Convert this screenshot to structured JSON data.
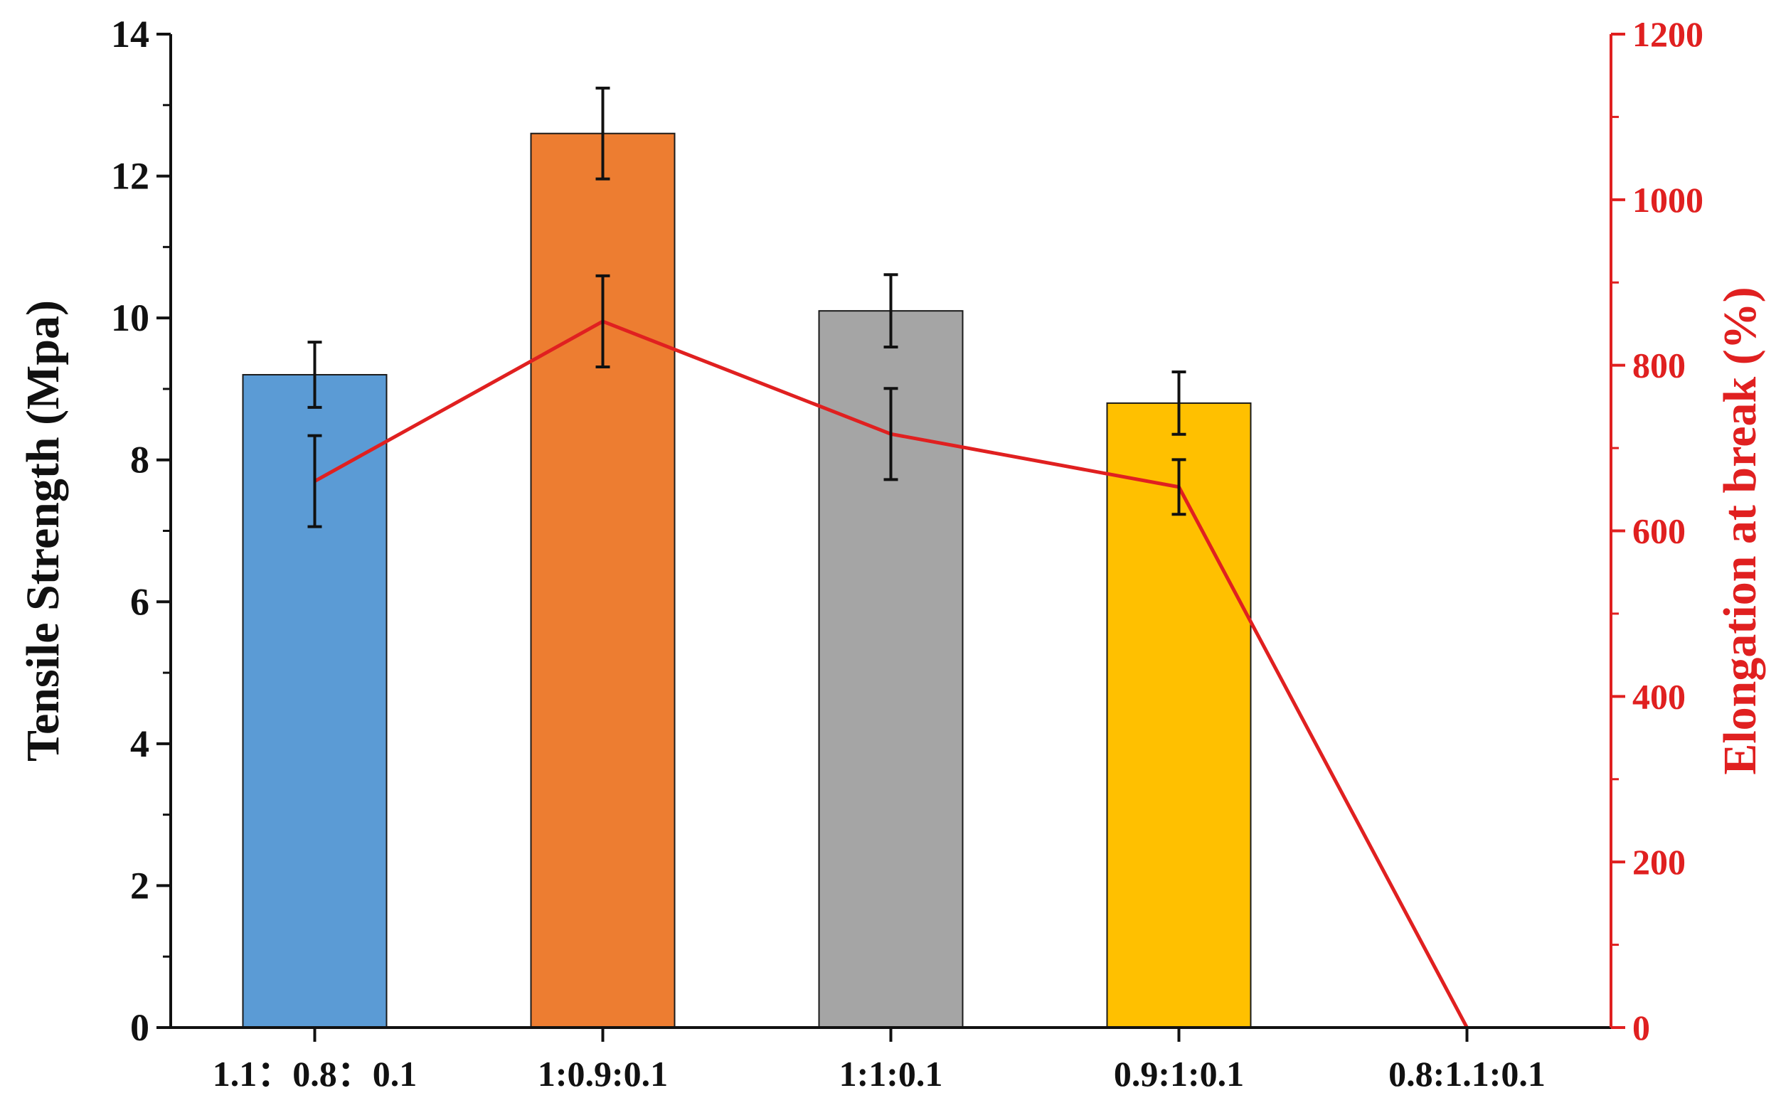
{
  "chart_data": {
    "type": "bar",
    "categories": [
      "1.1：0.8：0.1",
      "1:0.9:0.1",
      "1:1:0.1",
      "0.9:1:0.1",
      "0.8:1.1:0.1"
    ],
    "bar_series": {
      "values": [
        9.2,
        12.6,
        10.1,
        8.8,
        null
      ],
      "errors": [
        0.46,
        0.64,
        0.51,
        0.44,
        null
      ],
      "colors": [
        "#5B9BD5",
        "#ED7D31",
        "#A5A5A5",
        "#FFC000",
        null
      ]
    },
    "line_series": {
      "values": [
        660,
        853,
        717,
        653,
        0
      ],
      "errors": [
        55,
        55,
        55,
        33,
        null
      ],
      "color": "#E02020"
    },
    "ylabel": "Tensile Strength (Mpa)",
    "ylim": [
      0,
      14
    ],
    "yticks": [
      0,
      2,
      4,
      6,
      8,
      10,
      12,
      14
    ],
    "y2label": "Elongation at break (%)",
    "y2lim": [
      0,
      1200
    ],
    "y2ticks": [
      0,
      200,
      400,
      600,
      800,
      1000,
      1200
    ],
    "y2color": "#E02020",
    "grid": false,
    "legend": "none"
  }
}
